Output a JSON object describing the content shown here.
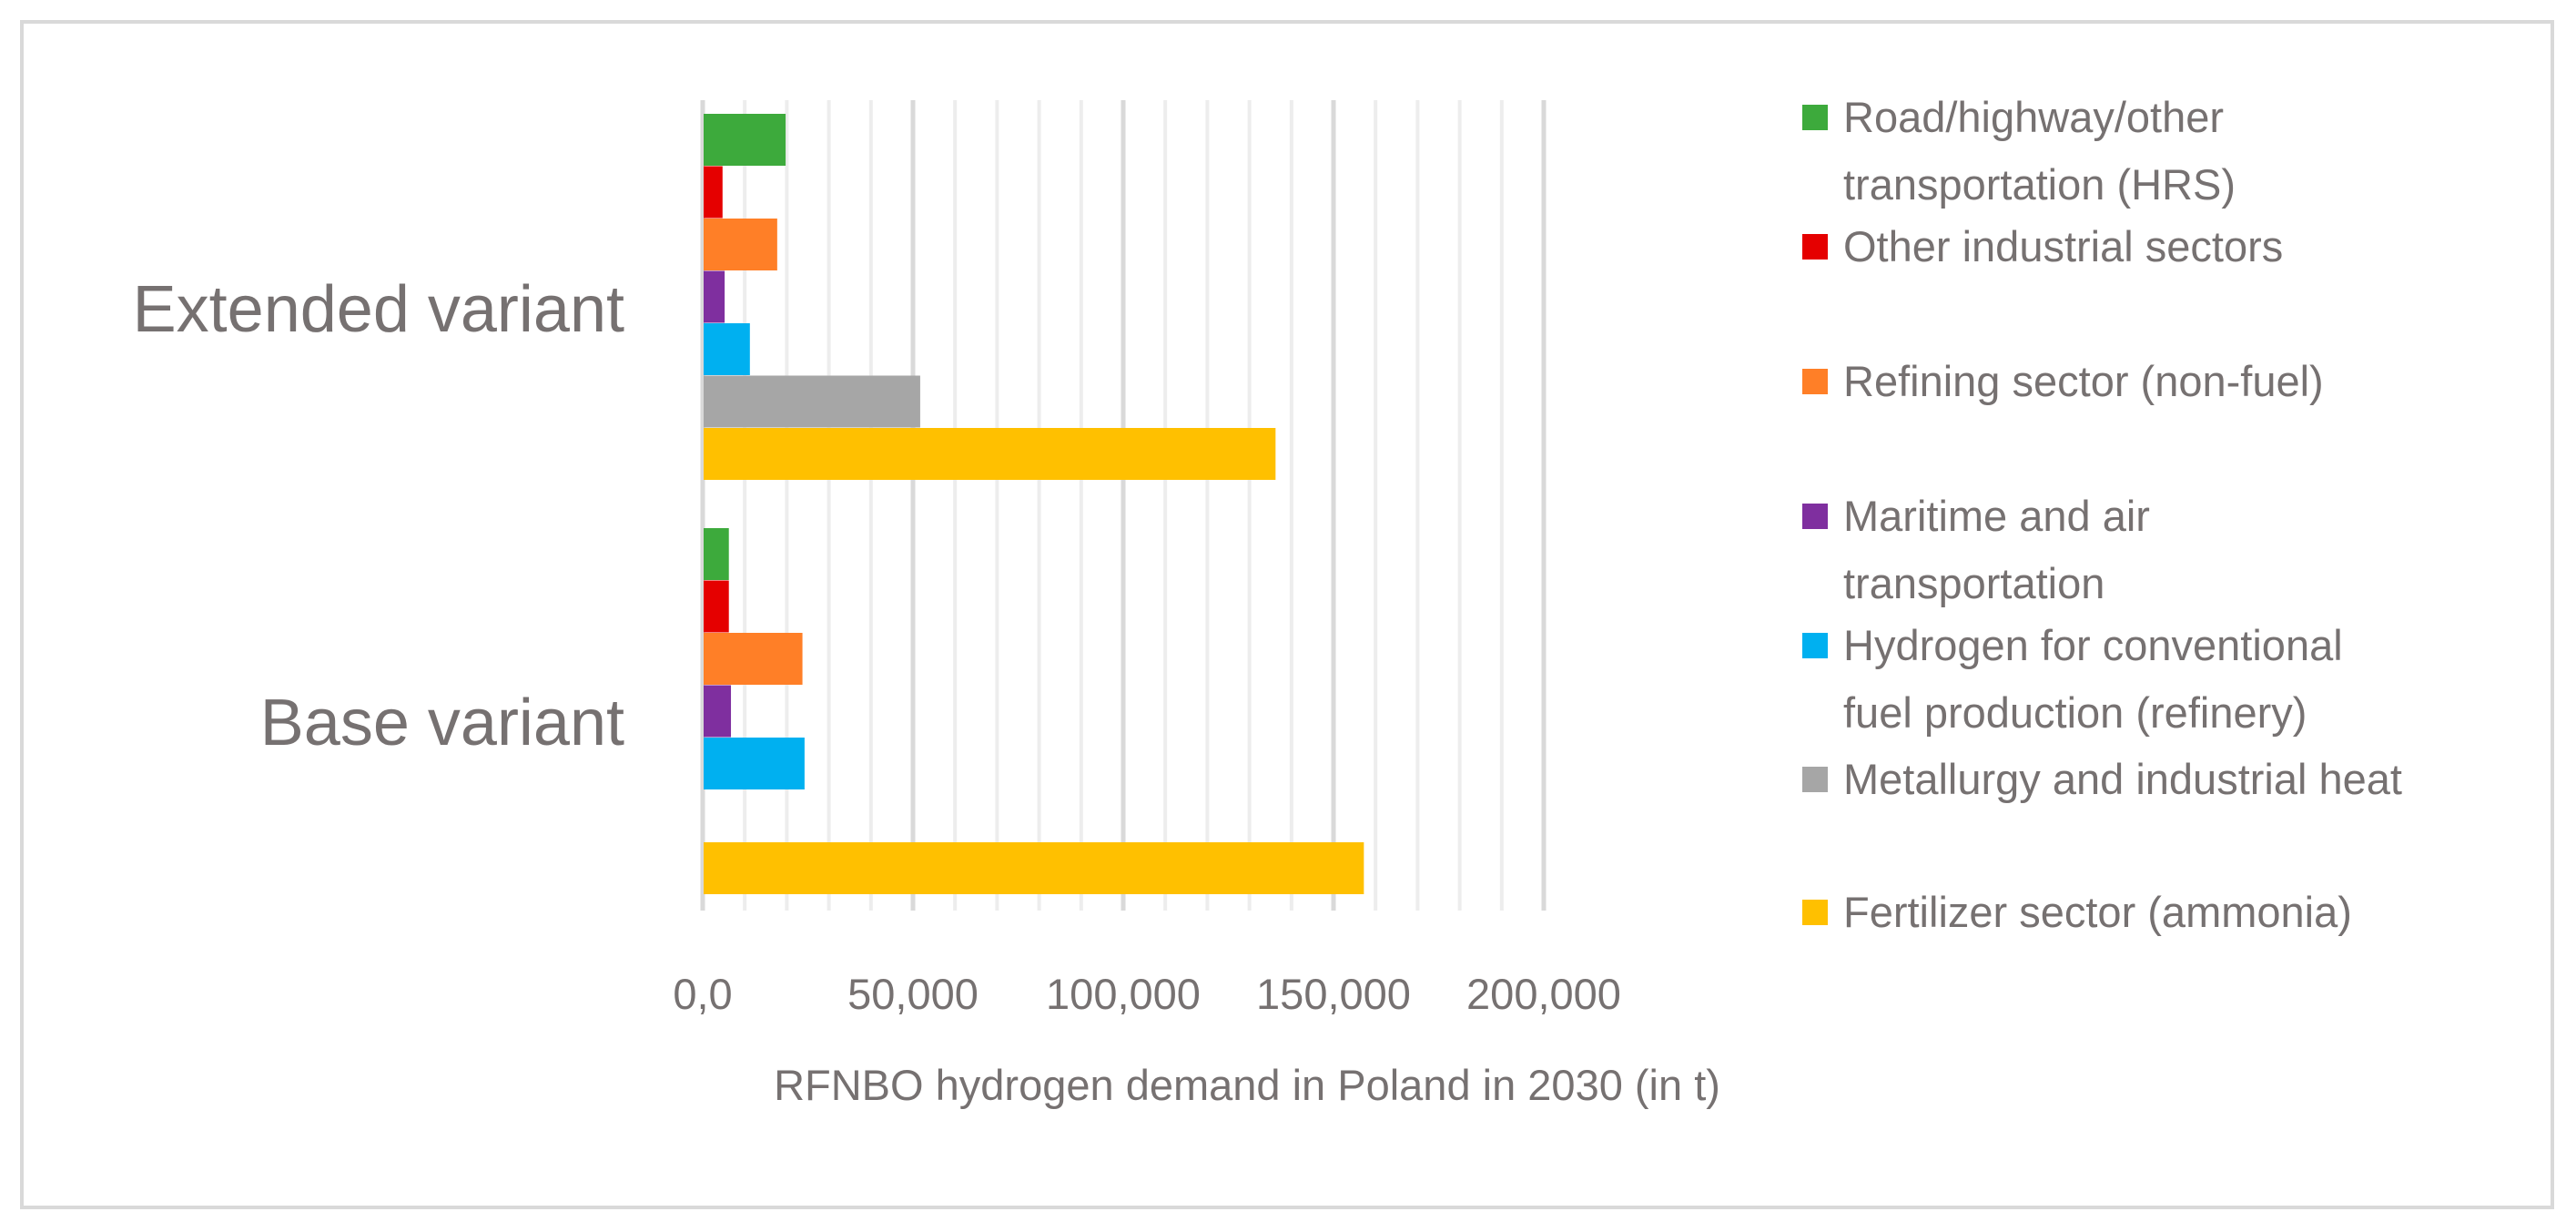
{
  "chart_data": {
    "type": "bar",
    "orientation": "horizontal",
    "title": "",
    "xlabel": "RFNBO hydrogen demand in Poland in 2030 (in t)",
    "ylabel": "",
    "xlim": [
      0,
      200000
    ],
    "major_step": 50000,
    "minor_step": 10000,
    "tick_labels": [
      "0,0",
      "50,000",
      "100,000",
      "150,000",
      "200,000"
    ],
    "grid": true,
    "legend_position": "right",
    "categories": [
      "Extended variant",
      "Base variant"
    ],
    "series": [
      {
        "name": "Road/highway/other transportation (HRS)",
        "color": "#3DAA3C",
        "values": [
          19500,
          6000
        ]
      },
      {
        "name": "Other industrial sectors",
        "color": "#E50000",
        "values": [
          4500,
          6000
        ]
      },
      {
        "name": "Refining sector (non-fuel)",
        "color": "#FF7F27",
        "values": [
          17500,
          23500
        ]
      },
      {
        "name": "Maritime and air transportation",
        "color": "#7F2F9F",
        "values": [
          5000,
          6500
        ]
      },
      {
        "name": "Hydrogen for conventional fuel production (refinery)",
        "color": "#00B0F0",
        "values": [
          11000,
          24000
        ]
      },
      {
        "name": "Metallurgy and industrial heat",
        "color": "#A6A6A6",
        "values": [
          51500,
          0
        ]
      },
      {
        "name": "Fertilizer sector (ammonia)",
        "color": "#FFC000",
        "values": [
          136000,
          157000
        ]
      }
    ],
    "legend_lines": [
      [
        "Road/highway/other",
        "transportation (HRS)"
      ],
      [
        "Other industrial sectors"
      ],
      [
        "Refining sector (non-fuel)"
      ],
      [
        "Maritime and air",
        "transportation"
      ],
      [
        "Hydrogen for conventional",
        "fuel production (refinery)"
      ],
      [
        "Metallurgy and industrial heat"
      ],
      [
        "Fertilizer sector (ammonia)"
      ]
    ]
  }
}
